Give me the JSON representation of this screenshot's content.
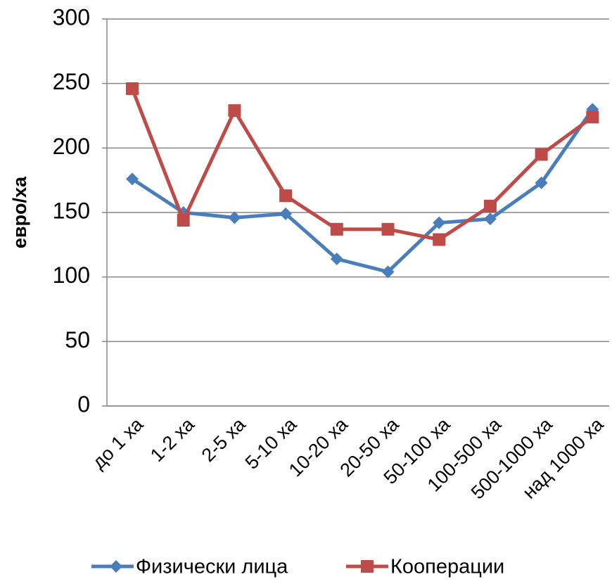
{
  "chart_data": {
    "type": "line",
    "y_label": "евро/ха",
    "categories": [
      "до 1 ха",
      "1-2 ха",
      "2-5 ха",
      "5-10 ха",
      "10-20 ха",
      "20-50 ха",
      "50-100 ха",
      "100-500 ха",
      "500-1000 ха",
      "над 1000 ха"
    ],
    "series": [
      {
        "name": "Физически лица",
        "color": "#4a7ebb",
        "marker": "diamond",
        "values": [
          176,
          150,
          146,
          149,
          114,
          104,
          142,
          145,
          173,
          230
        ]
      },
      {
        "name": "Кооперации",
        "color": "#be4b48",
        "marker": "square",
        "values": [
          246,
          144,
          229,
          163,
          137,
          137,
          129,
          155,
          195,
          224
        ]
      }
    ],
    "ylim": [
      0,
      300
    ],
    "yticks": [
      0,
      50,
      100,
      150,
      200,
      250,
      300
    ],
    "grid": true,
    "legend": "bottom"
  }
}
